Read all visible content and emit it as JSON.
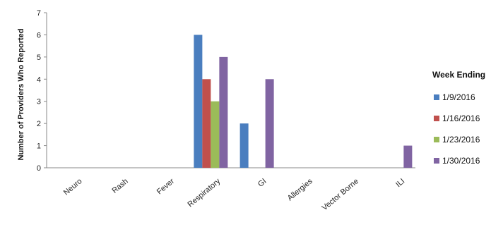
{
  "chart_data": {
    "type": "bar",
    "title": "",
    "xlabel": "",
    "ylabel": "Number of Providers Who Reported",
    "ylim": [
      0,
      7
    ],
    "yticks": [
      0,
      1,
      2,
      3,
      4,
      5,
      6,
      7
    ],
    "grid": false,
    "legend_placement": "right",
    "legend_title": "Week Ending",
    "categories": [
      "Neuro",
      "Rash",
      "Fever",
      "Respiratory",
      "GI",
      "Allergies",
      "Vector Borne",
      "ILI"
    ],
    "series": [
      {
        "name": "1/9/2016",
        "color": "#4a7ebf",
        "values": [
          0,
          0,
          0,
          6,
          2,
          0,
          0,
          0
        ]
      },
      {
        "name": "1/16/2016",
        "color": "#c0504d",
        "values": [
          0,
          0,
          0,
          4,
          0,
          0,
          0,
          0
        ]
      },
      {
        "name": "1/23/2016",
        "color": "#9bbb59",
        "values": [
          0,
          0,
          0,
          3,
          0,
          0,
          0,
          0
        ]
      },
      {
        "name": "1/30/2016",
        "color": "#8064a2",
        "values": [
          0,
          0,
          0,
          5,
          4,
          0,
          0,
          1
        ]
      }
    ]
  }
}
